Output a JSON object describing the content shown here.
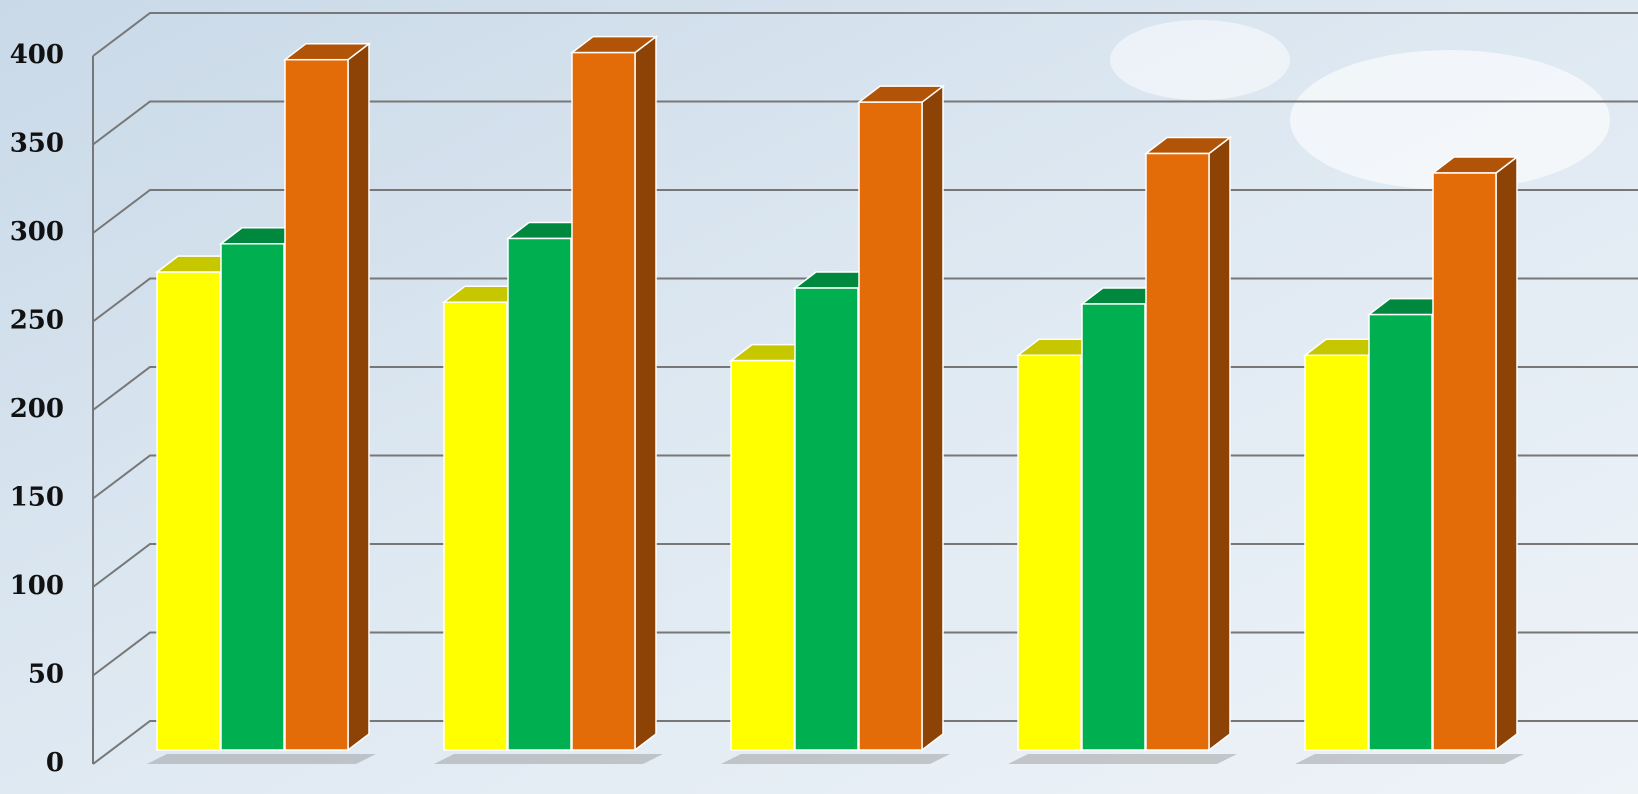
{
  "chart_data": {
    "type": "bar",
    "categories": [
      null,
      null,
      null,
      null,
      null
    ],
    "series": [
      {
        "color": "#ffff00",
        "values": [
          270,
          253,
          220,
          223,
          223
        ]
      },
      {
        "color": "#00b050",
        "values": [
          286,
          289,
          261,
          252,
          246
        ]
      },
      {
        "color": "#e36c09",
        "values": [
          390,
          394,
          366,
          337,
          326
        ]
      }
    ],
    "ylim": [
      0,
      400
    ],
    "yticks": [
      0,
      50,
      100,
      150,
      200,
      250,
      300,
      350,
      400
    ],
    "grid": true
  }
}
